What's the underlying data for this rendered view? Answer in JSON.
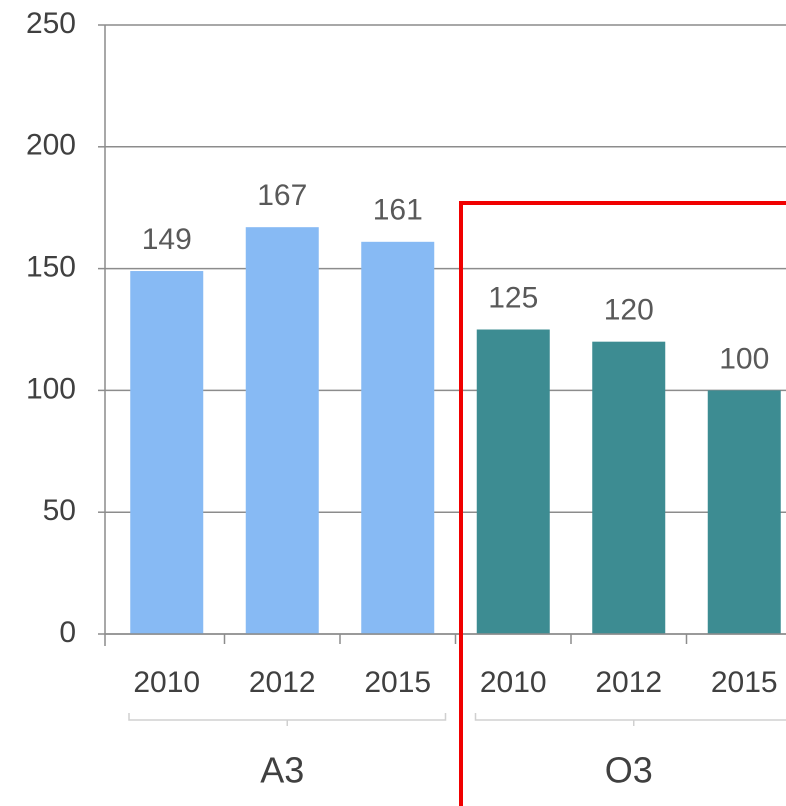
{
  "chart_data": {
    "type": "bar",
    "groups": [
      {
        "name": "A3",
        "color": "#87baf4",
        "categories": [
          "2010",
          "2012",
          "2015"
        ],
        "values": [
          149,
          167,
          161
        ]
      },
      {
        "name": "O3",
        "color": "#3d8c92",
        "categories": [
          "2010",
          "2012",
          "2015"
        ],
        "values": [
          125,
          120,
          100
        ]
      }
    ],
    "ylim": [
      0,
      250
    ],
    "yticks": [
      0,
      50,
      100,
      150,
      200,
      250
    ],
    "grid": true
  }
}
